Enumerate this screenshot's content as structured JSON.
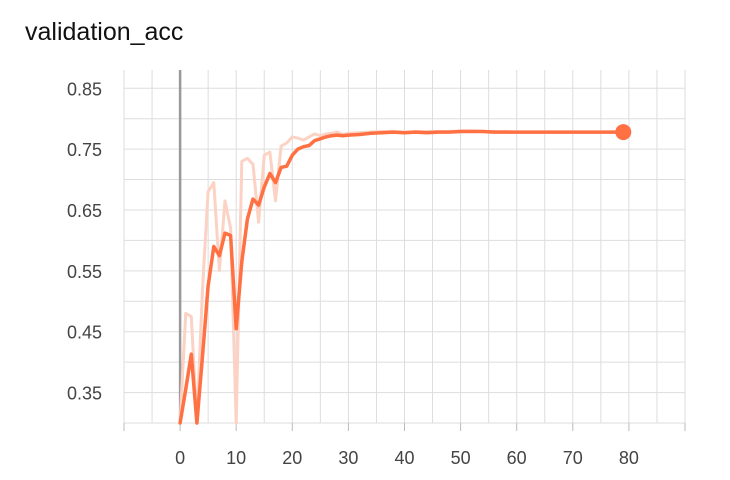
{
  "chart_data": {
    "type": "line",
    "title": "validation_acc",
    "xlabel": "",
    "ylabel": "",
    "xlim": [
      -10,
      90
    ],
    "ylim": [
      0.3,
      0.88
    ],
    "x_ticks": [
      0,
      10,
      20,
      30,
      40,
      50,
      60,
      70,
      80
    ],
    "x_tick_labels": [
      "0",
      "10",
      "20",
      "30",
      "40",
      "50",
      "60",
      "70",
      "80"
    ],
    "y_ticks": [
      0.35,
      0.45,
      0.55,
      0.65,
      0.75,
      0.85
    ],
    "y_tick_labels": [
      "0.35",
      "0.45",
      "0.55",
      "0.65",
      "0.75",
      "0.85"
    ],
    "grid": true,
    "legend": "none",
    "colors": {
      "smoothed": "#ff7043",
      "raw": "#fbd2c4",
      "zero_line": "#999999",
      "grid": "#dddddd",
      "title": "#111111",
      "tick_text": "#444444"
    },
    "series": [
      {
        "role": "raw",
        "x": [
          0,
          1,
          2,
          3,
          4,
          5,
          6,
          7,
          8,
          9,
          10,
          11,
          12,
          13,
          14,
          15,
          16,
          17,
          18,
          19,
          20,
          21,
          22,
          23,
          24,
          25,
          26,
          27,
          28,
          29,
          30,
          32,
          34,
          36,
          38,
          40,
          42,
          44,
          46,
          48,
          50,
          52,
          54,
          56,
          58,
          60,
          65,
          70,
          75,
          79
        ],
        "values": [
          0.3,
          0.48,
          0.475,
          0.3,
          0.52,
          0.68,
          0.695,
          0.55,
          0.665,
          0.62,
          0.3,
          0.73,
          0.735,
          0.725,
          0.63,
          0.74,
          0.745,
          0.665,
          0.755,
          0.76,
          0.77,
          0.768,
          0.765,
          0.77,
          0.775,
          0.772,
          0.775,
          0.776,
          0.778,
          0.774,
          0.776,
          0.777,
          0.778,
          0.779,
          0.779,
          0.778,
          0.779,
          0.779,
          0.779,
          0.779,
          0.78,
          0.78,
          0.779,
          0.779,
          0.779,
          0.778,
          0.778,
          0.778,
          0.778,
          0.778
        ]
      },
      {
        "role": "smoothed",
        "x": [
          0,
          1,
          2,
          3,
          4,
          5,
          6,
          7,
          8,
          9,
          10,
          11,
          12,
          13,
          14,
          15,
          16,
          17,
          18,
          19,
          20,
          21,
          22,
          23,
          24,
          25,
          26,
          27,
          28,
          29,
          30,
          32,
          34,
          36,
          38,
          40,
          42,
          44,
          46,
          48,
          50,
          52,
          54,
          56,
          58,
          60,
          65,
          70,
          75,
          79
        ],
        "values": [
          0.3,
          0.355,
          0.413,
          0.3,
          0.41,
          0.525,
          0.59,
          0.575,
          0.612,
          0.608,
          0.455,
          0.565,
          0.635,
          0.668,
          0.658,
          0.688,
          0.71,
          0.695,
          0.72,
          0.722,
          0.74,
          0.75,
          0.754,
          0.756,
          0.764,
          0.767,
          0.77,
          0.772,
          0.773,
          0.772,
          0.773,
          0.774,
          0.776,
          0.777,
          0.778,
          0.777,
          0.778,
          0.777,
          0.778,
          0.778,
          0.779,
          0.779,
          0.779,
          0.778,
          0.778,
          0.778,
          0.778,
          0.778,
          0.778,
          0.778
        ]
      }
    ]
  }
}
